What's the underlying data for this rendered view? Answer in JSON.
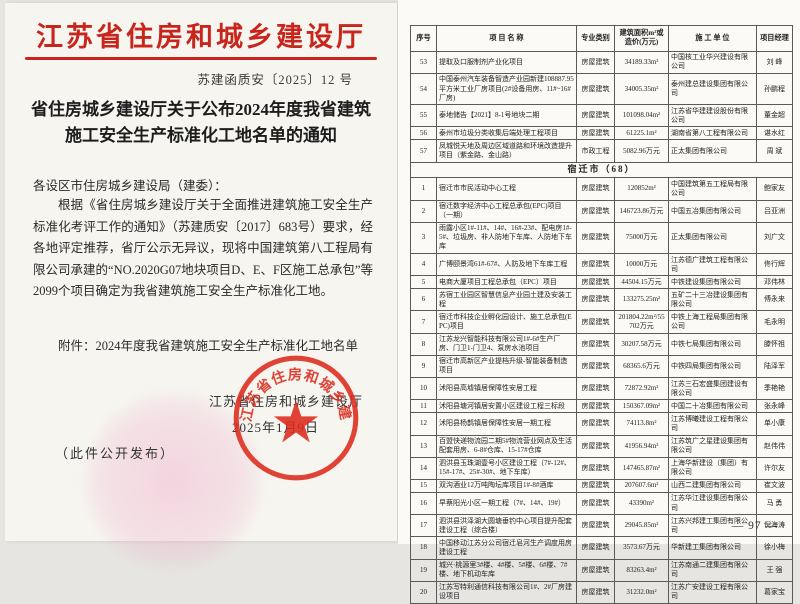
{
  "left_doc": {
    "agency": "江苏省住房和城乡建设厅",
    "doc_number": "苏建函质安〔2025〕12 号",
    "title_line1": "省住房城乡建设厅关于公布2024年度我省建筑",
    "title_line2": "施工安全生产标准化工地名单的通知",
    "salutation": "各设区市住房城乡建设局（建委）：",
    "body": "根据《省住房城乡建设厅关于全面推进建筑施工安全生产标准化考评工作的通知》（苏建质安〔2017〕683号）要求，经各地评定推荐，省厅公示无异议，现将中国建筑第八工程局有限公司承建的“NO.2020G07地块项目D、E、F区施工总承包”等2099个项目确定为我省建筑施工安全生产标准化工地。",
    "attachment": "附件：2024年度我省建筑施工安全生产标准化工地名单",
    "signer": "江苏省住房和城乡建设厅",
    "date": "2025年1月9日",
    "public_note": "（此件公开发布）",
    "seal_text": "江苏省住房和城乡建设厅"
  },
  "right_doc": {
    "page_number": "— 97 —",
    "table": {
      "headers": [
        "序号",
        "项 目 名 称",
        "专业类别",
        "建筑面积m²或造价(万元)",
        "施 工 单 位",
        "项目经理"
      ],
      "rows": [
        {
          "cells": [
            "53",
            "提取及口服制剂产业化项目",
            "房屋建筑",
            "34189.33m²",
            "中国核工业华兴建设有限公司",
            "刘 峰"
          ]
        },
        {
          "cells": [
            "54",
            "中国泰州汽车装备智造产业园新建108887.95平方米工业厂房项目(2#设备用房、11#~16#厂房)",
            "房屋建筑",
            "34005.35m²",
            "泰州建总建设集团有限公司",
            "孙鹏程"
          ]
        },
        {
          "cells": [
            "55",
            "泰地储告【2021】8-1号地块二期",
            "房屋建筑",
            "101098.04m²",
            "江苏省华建建设股份有限公司",
            "董金超"
          ]
        },
        {
          "cells": [
            "56",
            "泰州市垃圾分类收集后端处理工程项目",
            "房屋建筑",
            "61225.1m²",
            "湖南省第八工程有限公司",
            "谌水红"
          ]
        },
        {
          "cells": [
            "57",
            "凤城悦天地及周边区域道路和环境改造提升项目（紫金路、金山路）",
            "市政工程",
            "5082.96万元",
            "正太集团有限公司",
            "周 斌"
          ]
        },
        {
          "section": "宿迁市（68）"
        },
        {
          "cells": [
            "1",
            "宿迁市市民活动中心工程",
            "房屋建筑",
            "120852m²",
            "中国建筑第五工程局有限公司",
            "鲍家友"
          ]
        },
        {
          "cells": [
            "2",
            "宿迁数字经济中心工程总承包(EPC)项目（一期）",
            "房屋建筑",
            "146723.86万元",
            "中国五冶集团有限公司",
            "吕亚洲"
          ]
        },
        {
          "cells": [
            "3",
            "雨露小区1#-11#、14#、16#-23#、配电房1#-5#、垃圾房、非人防地下车库、人防地下车库",
            "房屋建筑",
            "75000万元",
            "正太集团有限公司",
            "刘广文"
          ]
        },
        {
          "cells": [
            "4",
            "广博颐景湾61#-67#、人防及地下车库工程",
            "房屋建筑",
            "10000万元",
            "江苏德广建筑工程有限公司",
            "佟行辉"
          ]
        },
        {
          "cells": [
            "5",
            "电商大厦项目工程总承包（EPC）项目",
            "房屋建筑",
            "44504.15万元",
            "中铁建设集团有限公司",
            "邓伟林"
          ]
        },
        {
          "cells": [
            "6",
            "苏宿工业园区智慧信息产业园土建及安装工程",
            "房屋建筑",
            "133275.25m²",
            "五矿二十三冶建设集团有限公司",
            "傅永来"
          ]
        },
        {
          "cells": [
            "7",
            "宿迁市科技企业孵化园设计、施工总承包(EPC)项目",
            "房屋建筑",
            "201804.22m²/55702万元",
            "中铁上海工程局集团有限公司",
            "毛永明"
          ]
        },
        {
          "cells": [
            "8",
            "江苏龙兴智能科技有限公司1#-6#生产厂房、门卫1-门卫4、泵房水池项目",
            "房屋建筑",
            "30207.58万元",
            "中铁七局集团有限公司",
            "滕怀祖"
          ]
        },
        {
          "cells": [
            "9",
            "宿迁市高新区产业提档升级-智能装备制造项目",
            "房屋建筑",
            "68365.6万元",
            "中铁四局集团有限公司",
            "陆泽军"
          ]
        },
        {
          "cells": [
            "10",
            "沭阳县高墟镇居保障性安居工程",
            "房屋建筑",
            "72872.92m²",
            "江苏三石宏盛集团建设有限公司",
            "季艳艳"
          ]
        },
        {
          "cells": [
            "11",
            "沭阳县塘河镇居安置小区建设工程三标段",
            "房屋建筑",
            "150367.09m²",
            "中国二十冶集团有限公司",
            "张永峰"
          ]
        },
        {
          "cells": [
            "12",
            "沭阳县杨鹊镇居保障性安居一期工程",
            "房屋建筑",
            "74113.8m²",
            "江苏博曦建设工程有限公司",
            "单小康"
          ]
        },
        {
          "cells": [
            "13",
            "百盟快递物流园二期5#物流营业网点及生活配套用房、6-8#仓库、15-17#仓库",
            "房屋建筑",
            "41956.94m²",
            "江苏筑广之星建设集团有限公司",
            "赵伟伟"
          ]
        },
        {
          "cells": [
            "14",
            "泗洪县玉珠湖壹号小区建设工程（7#-12#、15#-17#、25#-30#、地下车库）",
            "房屋建筑",
            "147465.87m²",
            "上海华新建设（集团）有限公司",
            "许尔友"
          ]
        },
        {
          "cells": [
            "15",
            "双沟酒业12万吨陶坛库项目1#-8#酒库",
            "房屋建筑",
            "207607.6m²",
            "山西二建集团有限公司",
            "崔文波"
          ]
        },
        {
          "cells": [
            "16",
            "早蔡阳光小区一期工程（7#、14#、19#）",
            "房屋建筑",
            "43390m²",
            "江苏华江建设集团有限公司",
            "马 勇"
          ]
        },
        {
          "cells": [
            "17",
            "泗洪县洪泽湖大圆塘垂钓中心项目提升配套建设工程（综合楼）",
            "房屋建筑",
            "29045.85m²",
            "江苏兴邦建工集团有限公司",
            "倪海涛"
          ]
        },
        {
          "cells": [
            "18",
            "中国移动江苏分公司宿迁皂河生产调度用房建设工程",
            "房屋建筑",
            "3573.67万元",
            "华新建工集团有限公司",
            "徐小梅"
          ]
        },
        {
          "cells": [
            "19",
            "城兴·桃源里3#楼、4#楼、5#楼、6#楼、7#楼、地下机动车库",
            "房屋建筑",
            "83263.4m²",
            "江苏南通二建集团有限公司",
            "王 强"
          ]
        },
        {
          "cells": [
            "20",
            "江苏写特利通信科技有限公司1#、2#厂房建设项目",
            "房屋建筑",
            "31232.0m²",
            "江苏广安建设工程有限公司",
            "葛家宝"
          ]
        }
      ]
    }
  }
}
